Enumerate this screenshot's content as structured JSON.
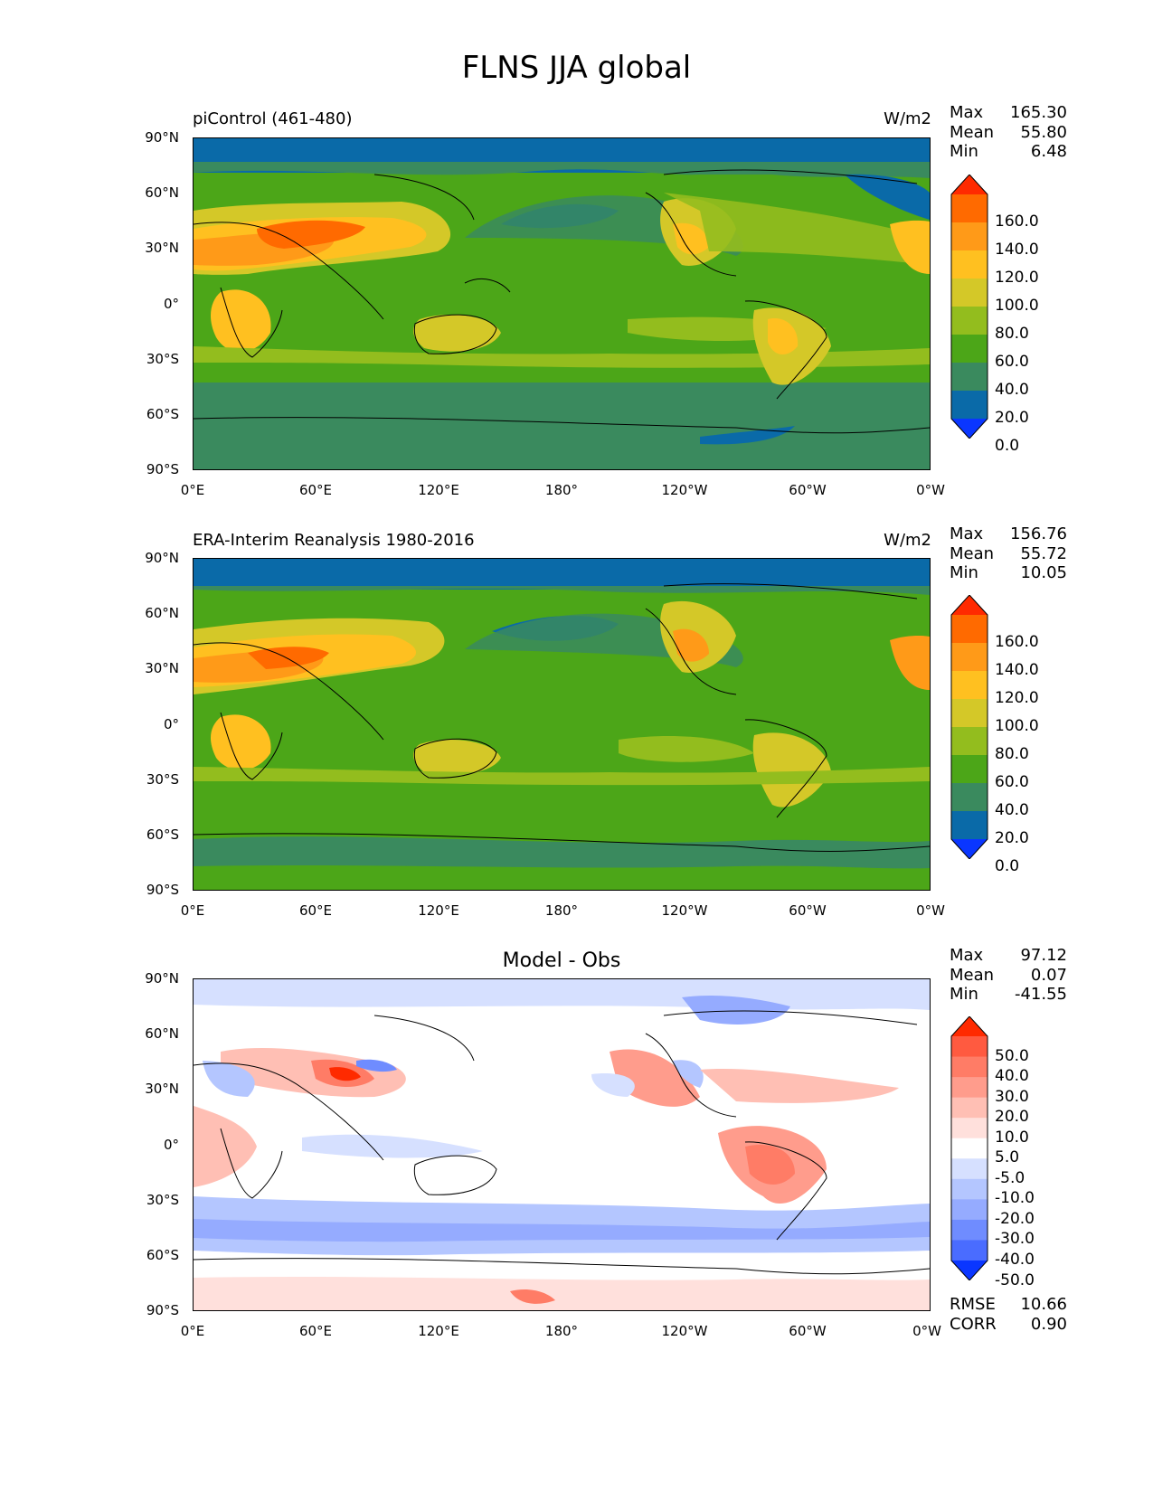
{
  "figure_title": "FLNS JJA global",
  "x_ticks": [
    "0°E",
    "60°E",
    "120°E",
    "180°",
    "120°W",
    "60°W",
    "0°W"
  ],
  "y_ticks": [
    "90°N",
    "60°N",
    "30°N",
    "0°",
    "30°S",
    "60°S",
    "90°S"
  ],
  "panels": [
    {
      "left_title": "piControl (461-480)",
      "units": "W/m2",
      "center_title": "",
      "stats": [
        [
          "Max",
          "165.30"
        ],
        [
          "Mean",
          "55.80"
        ],
        [
          "Min",
          "6.48"
        ]
      ],
      "colorbar": {
        "labels": [
          "160.0",
          "140.0",
          "120.0",
          "100.0",
          "80.0",
          "60.0",
          "40.0",
          "20.0",
          "0.0"
        ],
        "colors": [
          "#ff2a00",
          "#ff6a00",
          "#ff9a18",
          "#ffc020",
          "#d4c828",
          "#93bd1e",
          "#4ca618",
          "#3a8a5e",
          "#0a6aa8",
          "#0a36ff"
        ]
      }
    },
    {
      "left_title": "ERA-Interim Reanalysis 1980-2016",
      "units": "W/m2",
      "center_title": "",
      "stats": [
        [
          "Max",
          "156.76"
        ],
        [
          "Mean",
          "55.72"
        ],
        [
          "Min",
          "10.05"
        ]
      ],
      "colorbar": {
        "labels": [
          "160.0",
          "140.0",
          "120.0",
          "100.0",
          "80.0",
          "60.0",
          "40.0",
          "20.0",
          "0.0"
        ],
        "colors": [
          "#ff2a00",
          "#ff6a00",
          "#ff9a18",
          "#ffc020",
          "#d4c828",
          "#93bd1e",
          "#4ca618",
          "#3a8a5e",
          "#0a6aa8",
          "#0a36ff"
        ]
      }
    },
    {
      "left_title": "",
      "units": "",
      "center_title": "Model - Obs",
      "stats": [
        [
          "Max",
          "97.12"
        ],
        [
          "Mean",
          "0.07"
        ],
        [
          "Min",
          "-41.55"
        ]
      ],
      "extra_stats": [
        [
          "RMSE",
          "10.66"
        ],
        [
          "CORR",
          "0.90"
        ]
      ],
      "colorbar": {
        "labels": [
          "50.0",
          "40.0",
          "30.0",
          "20.0",
          "10.0",
          "5.0",
          "-5.0",
          "-10.0",
          "-20.0",
          "-30.0",
          "-40.0",
          "-50.0"
        ],
        "colors": [
          "#ff2a00",
          "#ff5a40",
          "#ff7c66",
          "#ff9c8c",
          "#ffbfb4",
          "#ffe0dc",
          "#ffffff",
          "#d6e0ff",
          "#b4c6ff",
          "#95abff",
          "#6f8cff",
          "#4a6cff",
          "#0a36ff"
        ]
      }
    }
  ]
}
